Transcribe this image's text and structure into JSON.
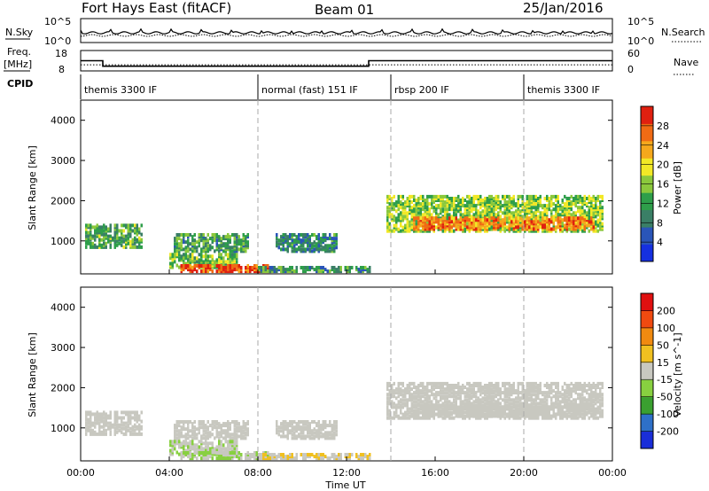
{
  "header": {
    "title": "Fort Hays East (fitACF)",
    "beam": "Beam 01",
    "date": "25/Jan/2016"
  },
  "top_panels": {
    "nsky_label": "N.Sky",
    "nsky_ticks": [
      "10^5",
      "10^0"
    ],
    "nsearch_label": "N.Search",
    "nsearch_ticks": [
      "10^5",
      "10^0"
    ],
    "freq_label_1": "Freq.",
    "freq_label_2": "[MHz]",
    "freq_ticks": [
      "18",
      "8"
    ],
    "nave_label": "Nave",
    "nave_ticks": [
      "60",
      "0"
    ],
    "cpid_label": "CPID"
  },
  "modes": [
    {
      "label": "themis 3300 IF",
      "start_h": 0
    },
    {
      "label": "normal (fast) 151 IF",
      "start_h": 8
    },
    {
      "label": "rbsp 200 IF",
      "start_h": 14
    },
    {
      "label": "themis 3300 IF",
      "start_h": 20
    }
  ],
  "x_axis": {
    "label": "Time UT",
    "ticks": [
      "00:00",
      "04:00",
      "08:00",
      "12:00",
      "16:00",
      "20:00",
      "00:00"
    ]
  },
  "power_panel": {
    "ylabel": "Slant Range [km]",
    "yticks": [
      "4000",
      "3000",
      "2000",
      "1000"
    ],
    "colorbar_label": "Power [dB]",
    "colorbar_ticks": [
      "28",
      "24",
      "20",
      "16",
      "12",
      "8",
      "4"
    ],
    "colors": [
      "#1530e0",
      "#2a55b8",
      "#3a7f66",
      "#2e9e4a",
      "#8bc83c",
      "#f2e826",
      "#f5a81c",
      "#f06b14",
      "#e02010"
    ]
  },
  "velocity_panel": {
    "ylabel": "Slant Range [km]",
    "yticks": [
      "4000",
      "3000",
      "2000",
      "1000"
    ],
    "colorbar_label": "Velocity [m s^-1]",
    "colorbar_ticks": [
      "200",
      "100",
      "50",
      "15",
      "-15",
      "-50",
      "-100",
      "-200"
    ],
    "colors": [
      "#1a2ed8",
      "#2e70c8",
      "#3aa030",
      "#88d040",
      "#c8c8c0",
      "#f0c020",
      "#f08a10",
      "#f04a10",
      "#e01010"
    ]
  },
  "chart_data": {
    "type": "heatmap",
    "title": "Fort Hays East (fitACF)",
    "xlabel": "Time UT",
    "ylabel": "Slant Range [km]",
    "xlim_hours": [
      0,
      24
    ],
    "ylim_km": [
      180,
      4500
    ],
    "grid": "dashed vertical lines at mode changes",
    "series": [
      {
        "name": "Power [dB]",
        "range": [
          0,
          30
        ]
      },
      {
        "name": "Velocity [m s^-1]",
        "range": [
          -250,
          250
        ]
      }
    ],
    "echo_regions": [
      {
        "t0": 0.2,
        "t1": 2.8,
        "r0": 800,
        "r1": 1350,
        "power": 12,
        "velocity": -5
      },
      {
        "t0": 4.2,
        "t1": 7.5,
        "r0": 700,
        "r1": 1150,
        "power": 11,
        "velocity": -5
      },
      {
        "t0": 4.0,
        "t1": 7.0,
        "r0": 300,
        "r1": 650,
        "power": 14,
        "velocity": 20
      },
      {
        "t0": 4.5,
        "t1": 8.5,
        "r0": 200,
        "r1": 380,
        "power": 27,
        "velocity": 25
      },
      {
        "t0": 8.8,
        "t1": 11.5,
        "r0": 700,
        "r1": 1150,
        "power": 9,
        "velocity": -10
      },
      {
        "t0": 8.0,
        "t1": 13.0,
        "r0": 200,
        "r1": 330,
        "power": 10,
        "velocity": -25
      },
      {
        "t0": 13.8,
        "t1": 23.6,
        "r0": 1200,
        "r1": 2100,
        "power": 15,
        "velocity": -3
      },
      {
        "t0": 15.0,
        "t1": 23.2,
        "r0": 1250,
        "r1": 1550,
        "power": 24,
        "velocity": -3
      }
    ],
    "freq_mhz": [
      {
        "t0": 0,
        "t1": 1,
        "value": 13
      },
      {
        "t0": 1,
        "t1": 13,
        "value": 10.3
      },
      {
        "t0": 13,
        "t1": 24,
        "value": 13
      }
    ],
    "nave": [
      {
        "t0": 0,
        "t1": 24,
        "value": 18
      }
    ]
  }
}
